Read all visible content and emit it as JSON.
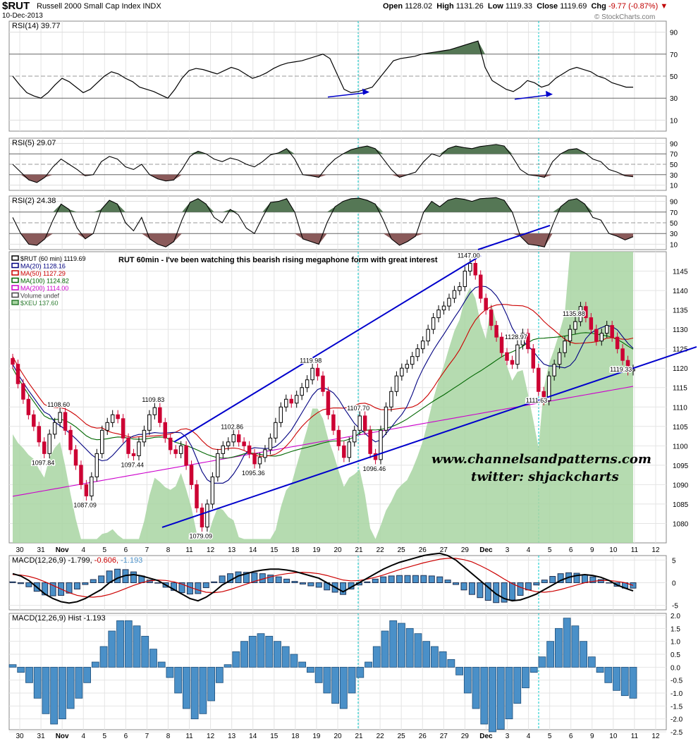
{
  "header": {
    "symbol": "$RUT",
    "description": "Russell 2000 Small Cap Index  INDX",
    "date": "10-Dec-2013",
    "open_label": "Open",
    "open": "1128.02",
    "high_label": "High",
    "high": "1131.26",
    "low_label": "Low",
    "low": "1119.33",
    "close_label": "Close",
    "close": "1119.69",
    "chg_label": "Chg",
    "chg": "-9.77 (-0.87%)",
    "logo": "© StockCharts.com"
  },
  "colors": {
    "up": "#000000",
    "down": "#cc0033",
    "ma20": "#000080",
    "ma50": "#cc0000",
    "ma100": "#006600",
    "ma200": "#cc00cc",
    "xeu": "#a8d5a2",
    "trend": "#0000cc",
    "rsi_over": "#557755",
    "rsi_under": "#8a5a5a",
    "macd_hist": "#4a90c8",
    "cyan_marker": "#00c8c8"
  },
  "chart_data": [
    {
      "type": "line",
      "panel": "RSI(14)",
      "legend": "RSI(14) 39.77",
      "ylim": [
        0,
        100
      ],
      "yticks": [
        10,
        30,
        50,
        70,
        90
      ],
      "values": [
        50,
        42,
        35,
        32,
        30,
        35,
        42,
        48,
        45,
        40,
        35,
        38,
        44,
        50,
        54,
        52,
        48,
        45,
        40,
        38,
        36,
        33,
        30,
        38,
        48,
        55,
        57,
        56,
        54,
        52,
        55,
        58,
        56,
        52,
        48,
        50,
        53,
        57,
        60,
        62,
        63,
        64,
        66,
        68,
        70,
        66,
        52,
        38,
        35,
        36,
        38,
        40,
        48,
        56,
        64,
        66,
        67,
        68,
        70,
        71,
        72,
        73,
        74,
        76,
        78,
        80,
        82,
        58,
        46,
        42,
        38,
        36,
        40,
        46,
        44,
        40,
        42,
        48,
        52,
        56,
        58,
        56,
        54,
        50,
        48,
        44,
        42,
        40,
        40
      ]
    },
    {
      "type": "line",
      "panel": "RSI(5)",
      "legend": "RSI(5) 29.07",
      "ylim": [
        0,
        100
      ],
      "yticks": [
        10,
        30,
        50,
        70,
        90
      ],
      "values": [
        50,
        35,
        20,
        15,
        25,
        45,
        60,
        50,
        40,
        28,
        30,
        55,
        65,
        60,
        45,
        40,
        50,
        30,
        22,
        18,
        20,
        40,
        65,
        75,
        70,
        60,
        55,
        62,
        58,
        50,
        45,
        55,
        68,
        72,
        80,
        60,
        30,
        28,
        25,
        45,
        60,
        70,
        78,
        82,
        85,
        80,
        60,
        40,
        25,
        30,
        35,
        55,
        70,
        65,
        80,
        85,
        82,
        80,
        84,
        86,
        88,
        85,
        65,
        40,
        30,
        28,
        25,
        55,
        70,
        78,
        80,
        72,
        60,
        55,
        40,
        35,
        28,
        26
      ]
    },
    {
      "type": "line",
      "panel": "RSI(2)",
      "legend": "RSI(2) 24.38",
      "ylim": [
        0,
        100
      ],
      "yticks": [
        10,
        30,
        50,
        70,
        90
      ],
      "values": [
        60,
        30,
        10,
        8,
        20,
        55,
        85,
        75,
        40,
        20,
        30,
        75,
        92,
        85,
        50,
        35,
        60,
        20,
        10,
        5,
        15,
        55,
        88,
        95,
        85,
        60,
        50,
        75,
        65,
        40,
        30,
        60,
        88,
        90,
        95,
        70,
        20,
        15,
        10,
        50,
        80,
        90,
        95,
        96,
        92,
        85,
        55,
        20,
        8,
        15,
        25,
        70,
        90,
        80,
        92,
        96,
        94,
        90,
        95,
        96,
        97,
        92,
        70,
        25,
        10,
        8,
        5,
        45,
        80,
        92,
        95,
        85,
        60,
        55,
        30,
        25,
        18,
        24
      ]
    },
    {
      "type": "candlestick",
      "panel": "$RUT (60 min)",
      "title": "RUT 60min - I've been watching this bearish rising megaphone form with great interest",
      "ylim": [
        1075,
        1150
      ],
      "yticks": [
        1080,
        1085,
        1090,
        1095,
        1100,
        1105,
        1110,
        1115,
        1120,
        1125,
        1130,
        1135,
        1140,
        1145
      ],
      "xticks": [
        "30",
        "31",
        "Nov",
        "4",
        "5",
        "6",
        "7",
        "8",
        "11",
        "12",
        "13",
        "14",
        "15",
        "18",
        "19",
        "20",
        "21",
        "22",
        "25",
        "26",
        "27",
        "29",
        "Dec",
        "3",
        "4",
        "5",
        "6",
        "9",
        "10",
        "11",
        "12"
      ],
      "legend": [
        {
          "label": "$RUT (60 min) 1119.69"
        },
        {
          "label": "MA(20) 1128.16"
        },
        {
          "label": "MA(50) 1127.29"
        },
        {
          "label": "MA(100) 1124.82"
        },
        {
          "label": "MA(200) 1114.00"
        },
        {
          "label": "Volume undef"
        },
        {
          "label": "$XEU 137.60"
        }
      ],
      "closes": [
        1121,
        1116,
        1112,
        1108,
        1105,
        1101,
        1098,
        1103,
        1106,
        1108.6,
        1104,
        1099,
        1095,
        1090,
        1087.09,
        1092,
        1098,
        1104,
        1106,
        1108,
        1107,
        1102,
        1098,
        1097.44,
        1101,
        1104,
        1108,
        1109.83,
        1106,
        1102,
        1099,
        1098,
        1100,
        1095,
        1090,
        1084,
        1079.09,
        1085,
        1092,
        1098,
        1100,
        1101,
        1102.86,
        1101,
        1100,
        1098,
        1095.36,
        1097,
        1099,
        1102,
        1106,
        1110,
        1112,
        1111,
        1113,
        1115,
        1117,
        1119.98,
        1118,
        1114,
        1108,
        1104,
        1100,
        1097,
        1101,
        1104,
        1107.7,
        1104,
        1098,
        1096.46,
        1104,
        1110,
        1114,
        1118,
        1120,
        1121,
        1123,
        1125,
        1127,
        1130,
        1133,
        1135,
        1136,
        1138,
        1140,
        1141,
        1145,
        1147,
        1144,
        1138,
        1135,
        1131,
        1128,
        1124,
        1122,
        1121,
        1126,
        1128.97,
        1125,
        1120,
        1114,
        1111.63,
        1118,
        1121,
        1124,
        1127,
        1130,
        1132,
        1135.88,
        1133,
        1130,
        1127,
        1129,
        1131,
        1128,
        1125,
        1122,
        1119.33,
        1119.69
      ],
      "annotations": [
        "1108.60",
        "1097.84",
        "1087.09",
        "1109.83",
        "1097.44",
        "1079.09",
        "1102.86",
        "1095.36",
        "1119.98",
        "1107.70",
        "1096.46",
        "1147.00",
        "1128.97",
        "1111.63",
        "1135.88",
        "1119.33"
      ],
      "watermark": [
        "www.channelsandpatterns.com",
        "twitter: shjackcharts"
      ]
    },
    {
      "type": "line",
      "panel": "MACD",
      "legend_name": "MACD(12,26,9)",
      "legend_values": [
        "-1.799",
        "-0.606",
        "-1.193"
      ],
      "ylim": [
        -6,
        6
      ],
      "yticks": [
        -5,
        0,
        5
      ],
      "series": [
        {
          "name": "MACD",
          "values": [
            2,
            1.5,
            0.5,
            -1,
            -2.5,
            -3.5,
            -4.2,
            -4.5,
            -4.2,
            -3.5,
            -2.5,
            -1.5,
            0,
            1,
            1.6,
            1.8,
            1.5,
            1,
            0.5,
            -0.5,
            -1.5,
            -2.5,
            -3.5,
            -4,
            -3.2,
            -2,
            -0.5,
            0.5,
            1.5,
            2,
            2.5,
            2.8,
            3,
            3,
            2.8,
            2.5,
            2,
            1.5,
            1,
            0,
            -1,
            -2,
            -1,
            0,
            1,
            2,
            3,
            3.8,
            4.5,
            5,
            5.5,
            6,
            6.3,
            6.5,
            6,
            5,
            3.5,
            2,
            0.5,
            -1,
            -2.5,
            -3.5,
            -4,
            -3.8,
            -3.2,
            -2.5,
            -1.5,
            -0.5,
            0.5,
            1.2,
            1.6,
            1.8,
            1.6,
            1.2,
            0.5,
            -0.5,
            -1.2,
            -1.8
          ]
        },
        {
          "name": "Signal",
          "values": [
            1.8,
            1.7,
            1.4,
            0.9,
            0.2,
            -0.6,
            -1.4,
            -2.2,
            -2.8,
            -3.1,
            -3.2,
            -3,
            -2.6,
            -2,
            -1.3,
            -0.6,
            0,
            0.4,
            0.6,
            0.5,
            0.2,
            -0.3,
            -1,
            -1.6,
            -2.1,
            -2.2,
            -2,
            -1.5,
            -0.9,
            -0.3,
            0.3,
            0.8,
            1.3,
            1.7,
            2,
            2.2,
            2.3,
            2.2,
            2,
            1.6,
            1.1,
            0.6,
            0.4,
            0.5,
            0.8,
            1.2,
            1.7,
            2.3,
            2.9,
            3.4,
            3.9,
            4.4,
            4.8,
            5.2,
            5.4,
            5.4,
            5.1,
            4.6,
            3.8,
            2.9,
            1.9,
            0.8,
            -0.2,
            -1,
            -1.6,
            -2,
            -2.1,
            -1.9,
            -1.5,
            -1,
            -0.5,
            0,
            0.3,
            0.5,
            0.5,
            0.3,
            0,
            -0.6
          ]
        }
      ]
    },
    {
      "type": "bar",
      "panel": "MACD Histogram",
      "legend": "MACD(12,26,9) Hist -1.193",
      "ylim": [
        -2.5,
        2.0
      ],
      "yticks": [
        -2.5,
        -2.0,
        -1.5,
        -1.0,
        -0.5,
        0.0,
        0.5,
        1.0,
        1.5,
        2.0
      ],
      "values": [
        0.1,
        -0.2,
        -0.6,
        -1.2,
        -1.8,
        -2.2,
        -2.0,
        -1.6,
        -1.2,
        -0.6,
        0.2,
        0.8,
        1.4,
        1.8,
        1.8,
        1.6,
        1.2,
        0.7,
        0.2,
        -0.4,
        -1.0,
        -1.6,
        -2.0,
        -1.8,
        -1.3,
        -0.6,
        0.1,
        0.6,
        1.0,
        1.2,
        1.3,
        1.2,
        1.0,
        0.8,
        0.5,
        0.2,
        -0.2,
        -0.6,
        -1.0,
        -1.4,
        -1.6,
        -1.0,
        -0.4,
        0.2,
        0.8,
        1.4,
        1.8,
        1.7,
        1.5,
        1.3,
        1.0,
        0.8,
        0.6,
        0.3,
        -0.3,
        -1.0,
        -1.6,
        -2.2,
        -2.5,
        -2.4,
        -2.0,
        -1.4,
        -0.8,
        -0.2,
        0.4,
        1.0,
        1.5,
        1.9,
        1.6,
        1.0,
        0.4,
        -0.2,
        -0.6,
        -0.9,
        -1.1,
        -1.2
      ]
    }
  ]
}
